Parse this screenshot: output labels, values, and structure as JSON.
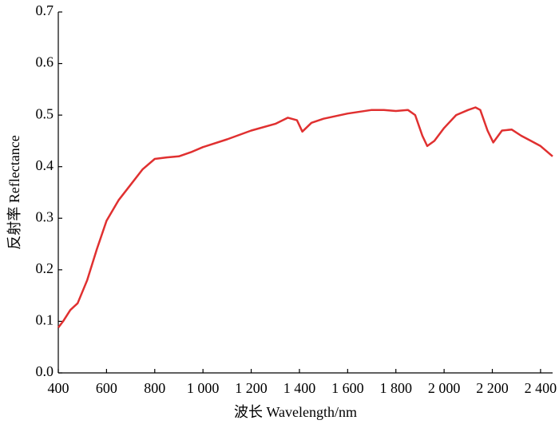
{
  "chart_data": {
    "type": "line",
    "x_label": "波长 Wavelength/nm",
    "y_label": "反射率 Reflectance",
    "x": [
      400,
      420,
      450,
      480,
      520,
      560,
      600,
      650,
      700,
      750,
      800,
      850,
      900,
      950,
      1000,
      1100,
      1200,
      1300,
      1352,
      1390,
      1412,
      1450,
      1500,
      1600,
      1700,
      1750,
      1800,
      1850,
      1880,
      1910,
      1930,
      1960,
      2000,
      2050,
      2100,
      2130,
      2150,
      2180,
      2204,
      2240,
      2280,
      2320,
      2360,
      2400,
      2450
    ],
    "series": [
      {
        "name": "Reflectance",
        "color": "#e03030",
        "values": [
          0.088,
          0.1,
          0.122,
          0.135,
          0.18,
          0.24,
          0.295,
          0.335,
          0.365,
          0.395,
          0.415,
          0.418,
          0.42,
          0.428,
          0.438,
          0.453,
          0.47,
          0.483,
          0.495,
          0.49,
          0.468,
          0.485,
          0.493,
          0.503,
          0.51,
          0.51,
          0.508,
          0.51,
          0.5,
          0.46,
          0.44,
          0.45,
          0.475,
          0.5,
          0.51,
          0.515,
          0.51,
          0.47,
          0.447,
          0.47,
          0.472,
          0.46,
          0.45,
          0.44,
          0.42
        ]
      }
    ],
    "xlim": [
      400,
      2450
    ],
    "ylim": [
      0,
      0.7
    ],
    "xticks": [
      400,
      600,
      800,
      {
        "value": 1000,
        "label": "1 000"
      },
      {
        "value": 1200,
        "label": "1 200"
      },
      {
        "value": 1400,
        "label": "1 400"
      },
      {
        "value": 1600,
        "label": "1 600"
      },
      {
        "value": 1800,
        "label": "1 800"
      },
      {
        "value": 2000,
        "label": "2 000"
      },
      {
        "value": 2200,
        "label": "2 200"
      },
      {
        "value": 2400,
        "label": "2 400"
      }
    ],
    "yticks": [
      {
        "value": 0,
        "label": "0.0"
      },
      0.1,
      0.2,
      0.3,
      0.4,
      0.5,
      0.6,
      0.7
    ]
  }
}
